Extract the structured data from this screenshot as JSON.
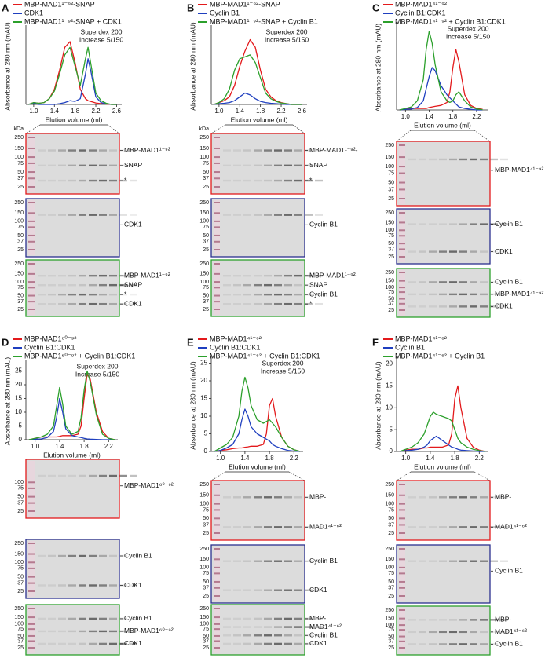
{
  "chart_data": [
    {
      "type": "line",
      "panel": "A",
      "annotations": [
        "Superdex 200",
        "Increase 5/150"
      ],
      "xlabel": "Elution volume (ml)",
      "ylabel": "Absorbance at 280 nm (mAU)",
      "x": [
        0.9,
        1.0,
        1.1,
        1.2,
        1.3,
        1.4,
        1.5,
        1.6,
        1.7,
        1.8,
        1.9,
        2.0,
        2.05,
        2.1,
        2.2,
        2.3,
        2.4,
        2.5,
        2.6
      ],
      "xlim": [
        0.85,
        2.7
      ],
      "xticks": [
        {
          "value": 1.0,
          "label": "1.0"
        },
        1.4,
        1.8,
        2.2,
        2.6
      ],
      "ylim": [
        0,
        20
      ],
      "series": [
        {
          "name": "MBP-MAD1¹⁻⁹²-SNAP",
          "color": "#e31a1c",
          "values": [
            0,
            0.5,
            0.3,
            0.5,
            1.5,
            4,
            9,
            15,
            16.5,
            11,
            4,
            1.5,
            1,
            0.8,
            0.4,
            0.2,
            0.1,
            0,
            0
          ]
        },
        {
          "name": "CDK1",
          "color": "#1f3fbf",
          "values": [
            0,
            0.3,
            0,
            0,
            0,
            0,
            0.2,
            0.5,
            1,
            0.8,
            1.5,
            8,
            12,
            9,
            2,
            0.5,
            0.2,
            0,
            0
          ]
        },
        {
          "name": "MBP-MAD1¹⁻⁹²-SNAP + CDK1",
          "color": "#2ca02c",
          "values": [
            0,
            0.5,
            0.3,
            0.5,
            1.5,
            3.5,
            8,
            13,
            15,
            10,
            5,
            12,
            15,
            11,
            3,
            1,
            0.3,
            0,
            0
          ]
        }
      ]
    },
    {
      "type": "line",
      "panel": "B",
      "annotations": [
        "Superdex 200",
        "Increase 5/150"
      ],
      "xlabel": "Elution volume (ml)",
      "ylabel": "Absorbance at 280 nm (mAU)",
      "x": [
        0.9,
        1.0,
        1.1,
        1.2,
        1.3,
        1.4,
        1.5,
        1.6,
        1.7,
        1.8,
        1.9,
        2.0,
        2.1,
        2.2,
        2.3,
        2.4,
        2.5,
        2.6
      ],
      "xlim": [
        0.85,
        2.7
      ],
      "xticks": [
        {
          "value": 1.0,
          "label": "1.0"
        },
        1.4,
        1.8,
        2.2,
        2.6
      ],
      "ylim": [
        0,
        20
      ],
      "series": [
        {
          "name": "MBP-MAD1¹⁻⁹²-SNAP",
          "color": "#e31a1c",
          "values": [
            0,
            0.5,
            1,
            2,
            5,
            10,
            14,
            17,
            15,
            9,
            4,
            2,
            1,
            0.5,
            0.2,
            0,
            0,
            0
          ]
        },
        {
          "name": "Cyclin B1",
          "color": "#1f3fbf",
          "values": [
            0,
            0.2,
            0.3,
            0.5,
            1,
            2,
            3,
            2.5,
            1.5,
            0.8,
            0.5,
            0.3,
            0.2,
            0.1,
            0,
            0,
            0,
            0
          ]
        },
        {
          "name": "MBP-MAD1¹⁻⁹²-SNAP + Cyclin B1",
          "color": "#2ca02c",
          "values": [
            0,
            0.5,
            1.5,
            4,
            9,
            12,
            12.5,
            13,
            11,
            7,
            3,
            1.5,
            0.8,
            0.4,
            0.2,
            0,
            0,
            0
          ]
        }
      ]
    },
    {
      "type": "line",
      "panel": "C",
      "annotations": [
        "Superdex 200",
        "Increase 5/150"
      ],
      "xlabel": "Elution volume (ml)",
      "ylabel": "Absorbance at 280 nm (mAU)",
      "x": [
        0.9,
        1.0,
        1.1,
        1.2,
        1.3,
        1.35,
        1.4,
        1.45,
        1.5,
        1.6,
        1.7,
        1.75,
        1.8,
        1.85,
        1.9,
        2.0,
        2.1,
        2.2,
        2.3
      ],
      "xlim": [
        0.85,
        2.4
      ],
      "xticks": [
        {
          "value": 1.0,
          "label": "1.0"
        },
        1.4,
        1.8,
        2.2
      ],
      "ylim": [
        0,
        28
      ],
      "series": [
        {
          "name": "MBP-MAD1⁴¹⁻⁹²",
          "color": "#e31a1c",
          "values": [
            0,
            0.3,
            0.5,
            0.5,
            0.5,
            0.5,
            0.8,
            1,
            1.2,
            1.5,
            2.5,
            6,
            14,
            20,
            16,
            5,
            1.5,
            0.5,
            0.2
          ]
        },
        {
          "name": "Cyclin B1:CDK1",
          "color": "#1f3fbf",
          "values": [
            0,
            0.2,
            0.3,
            0.8,
            3,
            7,
            11,
            14,
            13,
            8,
            5,
            4,
            3,
            2,
            1,
            0.5,
            0.2,
            0,
            0
          ]
        },
        {
          "name": "MBP-MAD1⁴¹⁻⁹² + Cyclin B1:CDK1",
          "color": "#2ca02c",
          "values": [
            0,
            0.5,
            1,
            3,
            10,
            20,
            26,
            22,
            15,
            6,
            3,
            2.5,
            3,
            5,
            6,
            3,
            1,
            0.3,
            0.1
          ]
        }
      ]
    },
    {
      "type": "line",
      "panel": "D",
      "annotations": [
        "Superdex 200",
        "Increase 5/150"
      ],
      "xlabel": "Elution volume (ml)",
      "ylabel": "Absorbance at 280 nm (mAU)",
      "x": [
        0.9,
        1.0,
        1.1,
        1.2,
        1.3,
        1.35,
        1.4,
        1.45,
        1.5,
        1.6,
        1.7,
        1.75,
        1.8,
        1.85,
        1.9,
        2.0,
        2.1,
        2.2,
        2.3
      ],
      "xlim": [
        0.85,
        2.35
      ],
      "xticks": [
        {
          "value": 1.0,
          "label": "1.0"
        },
        1.4,
        1.8,
        2.2
      ],
      "ylim": [
        0,
        28
      ],
      "yticks": [
        0,
        5,
        10,
        15,
        20,
        25
      ],
      "series": [
        {
          "name": "MBP-MAD1⁶⁰⁻⁹²",
          "color": "#e31a1c",
          "values": [
            0,
            0.5,
            1,
            1,
            1,
            1,
            1.2,
            1.5,
            1.5,
            1.5,
            2,
            5,
            15,
            24,
            22,
            10,
            3,
            0.5,
            0
          ]
        },
        {
          "name": "Cyclin B1:CDK1",
          "color": "#1f3fbf",
          "values": [
            0,
            0.2,
            0.3,
            0.8,
            3,
            8,
            15,
            10,
            4,
            1.5,
            1,
            0.8,
            0.5,
            0.3,
            0.2,
            0.1,
            0,
            0,
            0
          ]
        },
        {
          "name": "MBP-MAD1⁶⁰⁻⁹² + Cyclin B1:CDK1",
          "color": "#2ca02c",
          "values": [
            0,
            0.5,
            1,
            2,
            5,
            12,
            19,
            13,
            5,
            2,
            3,
            8,
            18,
            25,
            21,
            9,
            2,
            0.5,
            0
          ]
        }
      ]
    },
    {
      "type": "line",
      "panel": "E",
      "annotations": [
        "Superdex 200",
        "Increase 5/150"
      ],
      "xlabel": "Elution volume (ml)",
      "ylabel": "Absorbance at 280 nm (mAU)",
      "x": [
        0.9,
        1.0,
        1.1,
        1.2,
        1.3,
        1.35,
        1.4,
        1.45,
        1.5,
        1.6,
        1.7,
        1.75,
        1.8,
        1.85,
        1.9,
        2.0,
        2.1,
        2.2,
        2.3
      ],
      "xlim": [
        0.85,
        2.35
      ],
      "xticks": [
        {
          "value": 1.0,
          "label": "1.0"
        },
        1.4,
        1.8,
        2.2
      ],
      "ylim": [
        0,
        26
      ],
      "yticks": [
        0,
        5,
        10,
        15,
        20,
        25
      ],
      "series": [
        {
          "name": "MBP-MAD1⁴¹⁻⁶²",
          "color": "#e31a1c",
          "values": [
            0,
            0.3,
            0.5,
            0.8,
            1,
            1,
            1.2,
            1.3,
            1.5,
            1.5,
            2,
            5,
            13,
            15,
            10,
            4,
            1.5,
            0.5,
            0
          ]
        },
        {
          "name": "Cyclin B1:CDK1",
          "color": "#1f3fbf",
          "values": [
            0,
            0.3,
            1,
            2,
            5,
            9,
            12,
            10,
            7,
            5,
            4,
            3.5,
            3,
            2,
            1.5,
            0.8,
            0.3,
            0.1,
            0
          ]
        },
        {
          "name": "MBP-MAD1⁴¹⁻⁶² + Cyclin B1:CDK1",
          "color": "#2ca02c",
          "values": [
            0,
            1,
            2,
            4,
            10,
            17,
            21,
            18,
            13,
            9,
            8,
            8.5,
            9,
            8,
            7,
            4,
            1.5,
            0.5,
            0
          ]
        }
      ]
    },
    {
      "type": "line",
      "panel": "F",
      "xlabel": "Elution volume (ml)",
      "ylabel": "Absorbance at 280 nm (mAU)",
      "x": [
        0.9,
        1.0,
        1.1,
        1.2,
        1.3,
        1.35,
        1.4,
        1.45,
        1.5,
        1.6,
        1.7,
        1.75,
        1.8,
        1.85,
        1.9,
        2.0,
        2.1,
        2.2,
        2.3
      ],
      "xlim": [
        0.85,
        2.35
      ],
      "xticks": [
        {
          "value": 1.0,
          "label": "1.0"
        },
        1.4,
        1.8,
        2.2
      ],
      "ylim": [
        0,
        21
      ],
      "yticks": [
        0,
        5,
        10,
        15,
        20
      ],
      "series": [
        {
          "name": "MBP-MAD1⁴¹⁻⁶²",
          "color": "#e31a1c",
          "values": [
            0,
            0.3,
            0.5,
            0.5,
            0.8,
            0.8,
            1,
            1,
            1,
            1,
            1.5,
            4,
            12,
            15,
            10,
            3,
            1,
            0.3,
            0
          ]
        },
        {
          "name": "Cyclin B1",
          "color": "#1f3fbf",
          "values": [
            0,
            0.2,
            0.3,
            0.5,
            1,
            1.5,
            2.5,
            3,
            3.5,
            2.5,
            1.5,
            1,
            0.8,
            0.5,
            0.3,
            0.2,
            0.1,
            0,
            0
          ]
        },
        {
          "name": "MBP-MAD1⁴¹⁻⁶² + Cyclin B1",
          "color": "#2ca02c",
          "values": [
            0,
            0.5,
            1,
            2,
            4,
            6,
            8,
            9,
            8.5,
            8,
            7.5,
            7,
            5,
            3,
            2,
            1,
            0.5,
            0.2,
            0
          ]
        }
      ]
    }
  ],
  "gels": [
    [
      {
        "color": "#e31a1c",
        "unit": "kDa",
        "markers": [
          250,
          150,
          100,
          75,
          50,
          37,
          25
        ],
        "labels": [
          "MBP-MAD1¹⁻⁹²",
          "SNAP",
          "*"
        ]
      },
      {
        "color": "#2b2f8f",
        "markers": [
          250,
          150,
          100,
          75,
          50,
          37,
          25
        ],
        "labels": [
          "CDK1"
        ]
      },
      {
        "color": "#2ca02c",
        "markers": [
          250,
          150,
          100,
          75,
          50,
          37,
          25
        ],
        "labels": [
          "MBP-MAD1¹⁻⁹²",
          "SNAP",
          "*",
          "CDK1"
        ]
      }
    ],
    [
      {
        "color": "#e31a1c",
        "unit": "kDa",
        "markers": [
          250,
          150,
          100,
          75,
          50,
          37,
          25
        ],
        "labels": [
          "MBP-MAD1¹⁻⁹²-",
          "SNAP",
          "*"
        ]
      },
      {
        "color": "#2b2f8f",
        "markers": [
          250,
          150,
          100,
          75,
          50,
          37,
          25
        ],
        "labels": [
          "Cyclin B1"
        ]
      },
      {
        "color": "#2ca02c",
        "markers": [
          250,
          150,
          100,
          75,
          50,
          37,
          25
        ],
        "labels": [
          "MBP-MAD1¹⁻⁹²-",
          "SNAP",
          "Cyclin B1",
          "*"
        ]
      }
    ],
    [
      {
        "color": "#e31a1c",
        "markers": [
          250,
          150,
          100,
          75,
          50,
          37,
          25
        ],
        "labels": [
          "MBP-MAD1⁴¹⁻⁹²"
        ]
      },
      {
        "color": "#2b2f8f",
        "markers": [
          250,
          150,
          100,
          75,
          50,
          37,
          25
        ],
        "labels": [
          "Cyclin B1",
          "CDK1"
        ]
      },
      {
        "color": "#2ca02c",
        "markers": [
          250,
          150,
          100,
          75,
          50,
          37,
          25
        ],
        "labels": [
          "Cyclin B1",
          "MBP-MAD1⁴¹⁻⁹²",
          "CDK1"
        ]
      }
    ],
    [
      {
        "color": "#e31a1c",
        "markers": [
          100,
          75,
          50,
          37,
          25
        ],
        "labels": [
          "MBP-MAD1⁶⁰⁻⁹²"
        ]
      },
      {
        "color": "#2b2f8f",
        "markers": [
          250,
          150,
          100,
          75,
          50,
          37,
          25
        ],
        "labels": [
          "Cyclin B1",
          "CDK1"
        ]
      },
      {
        "color": "#2ca02c",
        "markers": [
          250,
          150,
          100,
          75,
          50,
          37,
          25
        ],
        "labels": [
          "Cyclin B1",
          "MBP-MAD1⁶⁰⁻⁹²",
          "CDK1"
        ]
      }
    ],
    [
      {
        "color": "#e31a1c",
        "markers": [
          250,
          150,
          100,
          75,
          50,
          37,
          25
        ],
        "labels": [
          "MBP-",
          "MAD1⁴¹⁻⁶²"
        ]
      },
      {
        "color": "#2b2f8f",
        "markers": [
          250,
          150,
          100,
          75,
          50,
          37,
          25
        ],
        "labels": [
          "Cyclin B1",
          "CDK1"
        ]
      },
      {
        "color": "#2ca02c",
        "markers": [
          250,
          150,
          100,
          75,
          50,
          37,
          25
        ],
        "labels": [
          "MBP-",
          "MAD1⁴¹⁻⁶²",
          "Cyclin B1",
          "CDK1"
        ]
      }
    ],
    [
      {
        "color": "#e31a1c",
        "markers": [
          250,
          150,
          100,
          75,
          50,
          37,
          25
        ],
        "labels": [
          "MBP-",
          "MAD1⁴¹⁻⁶²"
        ]
      },
      {
        "color": "#2b2f8f",
        "markers": [
          250,
          150,
          100,
          75,
          50,
          37,
          25
        ],
        "labels": [
          "Cyclin B1"
        ]
      },
      {
        "color": "#2ca02c",
        "markers": [
          250,
          150,
          100,
          75,
          50,
          37,
          25
        ],
        "labels": [
          "MBP-",
          "MAD1⁴¹⁻⁶²",
          "Cyclin B1"
        ]
      }
    ]
  ]
}
